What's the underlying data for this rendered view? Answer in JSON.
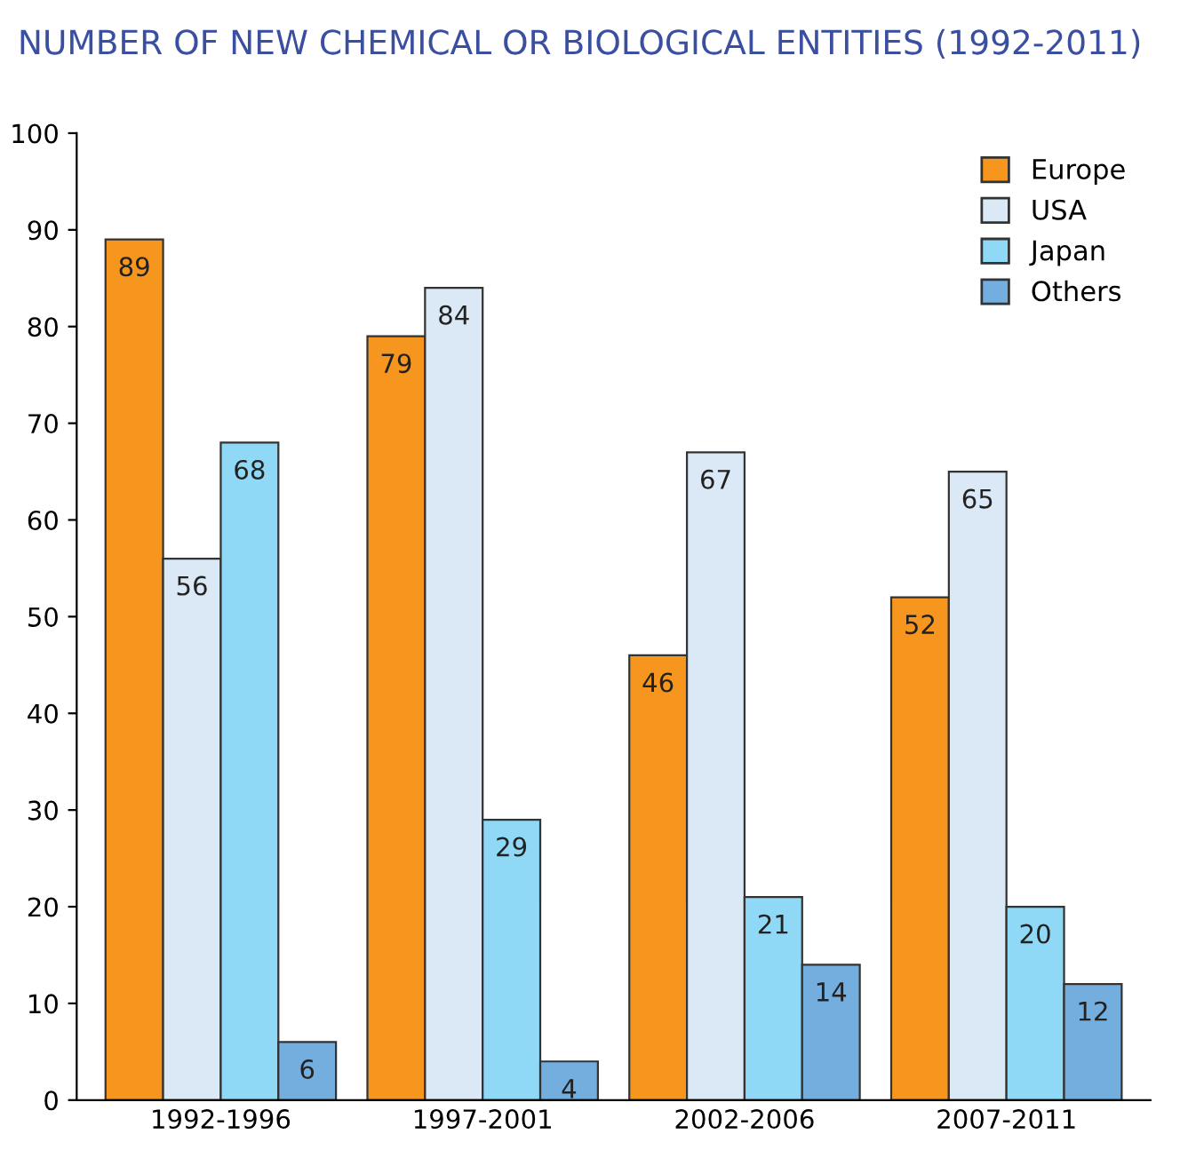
{
  "chart_data": {
    "type": "bar",
    "title": "NUMBER OF NEW CHEMICAL OR BIOLOGICAL ENTITIES (1992-2011)",
    "categories": [
      "1992-1996",
      "1997-2001",
      "2002-2006",
      "2007-2011"
    ],
    "series": [
      {
        "name": "Europe",
        "color": "#f7961e",
        "values": [
          89,
          79,
          46,
          52
        ]
      },
      {
        "name": "USA",
        "color": "#dbe8f5",
        "values": [
          56,
          84,
          67,
          65
        ]
      },
      {
        "name": "Japan",
        "color": "#8fd8f6",
        "values": [
          68,
          29,
          21,
          20
        ]
      },
      {
        "name": "Others",
        "color": "#74aedf",
        "values": [
          6,
          4,
          14,
          12
        ]
      }
    ],
    "ylim": [
      0,
      100
    ],
    "yticks": [
      0,
      10,
      20,
      30,
      40,
      50,
      60,
      70,
      80,
      90,
      100
    ],
    "data_labels": true,
    "legend": "top right",
    "grid": false
  }
}
